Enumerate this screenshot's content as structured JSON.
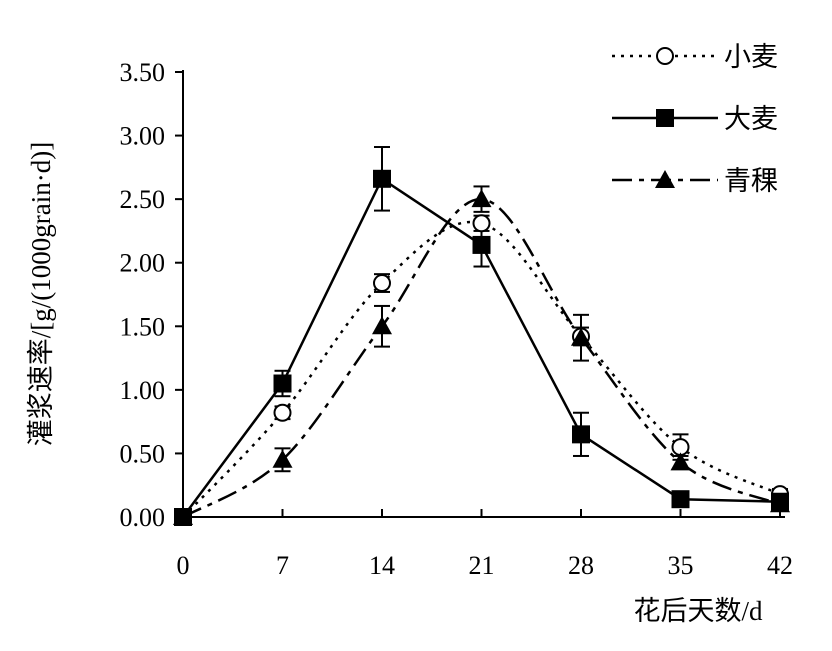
{
  "chart_data": {
    "type": "line",
    "xlabel": "花后天数/d",
    "ylabel": "灌浆速率/[g/(1000grain·d)]",
    "x": [
      0,
      7,
      14,
      21,
      28,
      35,
      42
    ],
    "xticks": [
      "0",
      "7",
      "14",
      "21",
      "28",
      "35",
      "42"
    ],
    "yticks": [
      "0.00",
      "0.50",
      "1.00",
      "1.50",
      "2.00",
      "2.50",
      "3.00",
      "3.50"
    ],
    "xlim": [
      0,
      42
    ],
    "ylim": [
      0,
      3.5
    ],
    "grid": false,
    "legend_position": "top-right",
    "series": [
      {
        "name": "小麦",
        "marker": "open-circle",
        "line": "dotted",
        "values": [
          0.0,
          0.82,
          1.84,
          2.31,
          1.42,
          0.55,
          0.18
        ],
        "errors": [
          0.0,
          0.05,
          0.07,
          0.06,
          0.07,
          0.1,
          0.04
        ]
      },
      {
        "name": "大麦",
        "marker": "filled-square",
        "line": "solid",
        "values": [
          0.0,
          1.05,
          2.66,
          2.14,
          0.65,
          0.14,
          0.12
        ],
        "errors": [
          0.0,
          0.1,
          0.25,
          0.17,
          0.17,
          0.04,
          0.03
        ]
      },
      {
        "name": "青稞",
        "marker": "filled-triangle",
        "line": "dash-dot",
        "values": [
          0.0,
          0.45,
          1.5,
          2.5,
          1.41,
          0.43,
          0.1
        ],
        "errors": [
          0.0,
          0.09,
          0.16,
          0.1,
          0.18,
          0.05,
          0.03
        ]
      }
    ]
  }
}
